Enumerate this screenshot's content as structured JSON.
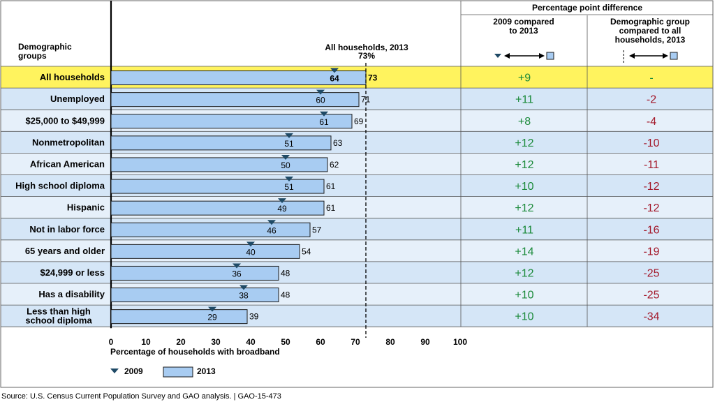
{
  "chart_data": {
    "type": "bar",
    "header": {
      "demographic_groups_line1": "Demographic",
      "demographic_groups_line2": "groups",
      "reference_label": "All households, 2013",
      "reference_value_label": "73%",
      "pp_difference": "Percentage point difference",
      "col1_line1": "2009 compared",
      "col1_line2": "to 2013",
      "col2_line1": "Demographic group",
      "col2_line2": "compared to all",
      "col2_line3": "households, 2013"
    },
    "categories": [
      "All households",
      "Unemployed",
      "$25,000 to $49,999",
      "Nonmetropolitan",
      "African American",
      "High school diploma",
      "Hispanic",
      "Not in labor force",
      "65 years and older",
      "$24,999 or less",
      "Has a disability",
      "Less than high|school diploma"
    ],
    "series": [
      {
        "name": "2009",
        "values": [
          64,
          60,
          61,
          51,
          50,
          51,
          49,
          46,
          40,
          36,
          38,
          29
        ]
      },
      {
        "name": "2013",
        "values": [
          73,
          71,
          69,
          63,
          62,
          61,
          61,
          57,
          54,
          48,
          48,
          39
        ]
      }
    ],
    "diff_2009_to_2013": [
      "+9",
      "+11",
      "+8",
      "+12",
      "+12",
      "+10",
      "+12",
      "+11",
      "+14",
      "+12",
      "+10",
      "+10"
    ],
    "diff_vs_all": [
      "-",
      "-2",
      "-4",
      "-10",
      "-11",
      "-12",
      "-12",
      "-16",
      "-19",
      "-25",
      "-25",
      "-34"
    ],
    "reference_value": 73,
    "xlim": [
      0,
      100
    ],
    "xticks": [
      "0",
      "10",
      "20",
      "30",
      "40",
      "50",
      "60",
      "70",
      "80",
      "90",
      "100"
    ],
    "xlabel": "Percentage of households with broadband",
    "legend": [
      "2009",
      "2013"
    ],
    "source": "Source: U.S. Census Current Population Survey and GAO analysis.  |  GAO-15-473",
    "colors": {
      "bar": "#a8ccf2",
      "bar_stroke": "#1a1a1a",
      "marker": "#1f4a66",
      "highlight_row": "#fff35e",
      "row_even": "#d5e6f7",
      "row_odd": "#e6f0fa",
      "positive": "#1b8a3a",
      "negative": "#a3182a"
    }
  }
}
